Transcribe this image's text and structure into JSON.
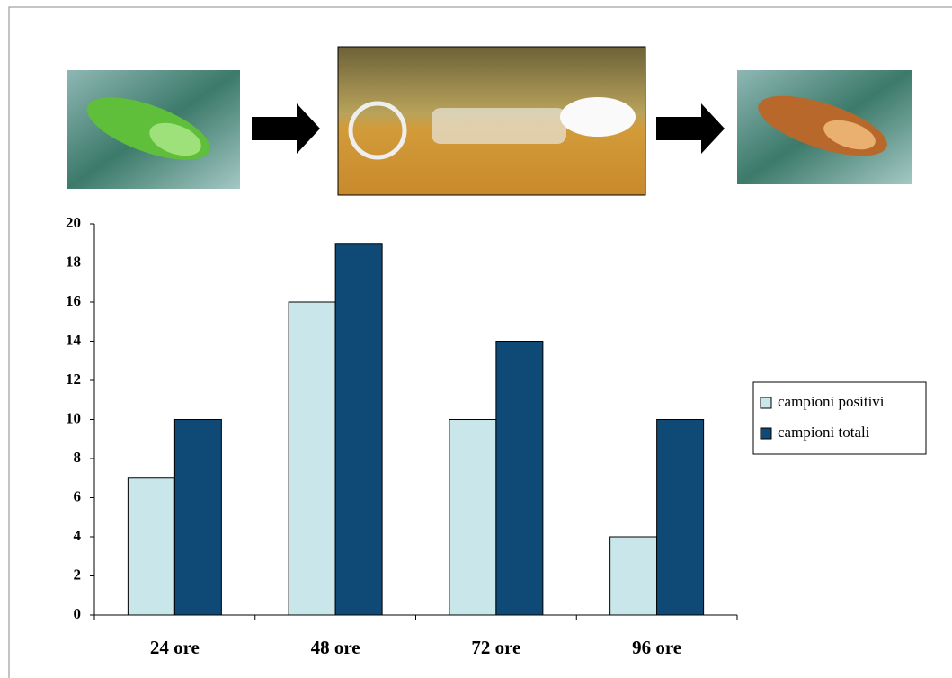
{
  "chart_data": {
    "type": "bar",
    "categories": [
      "24 ore",
      "48 ore",
      "72 ore",
      "96 ore"
    ],
    "series": [
      {
        "name": "campioni positivi",
        "color": "#c9e7ea",
        "values": [
          7,
          16,
          10,
          4
        ]
      },
      {
        "name": "campioni totali",
        "color": "#0f4a77",
        "values": [
          10,
          19,
          14,
          10
        ]
      }
    ],
    "ylim": [
      0,
      20
    ],
    "yticks": [
      0,
      2,
      4,
      6,
      8,
      10,
      12,
      14,
      16,
      18,
      20
    ],
    "grid": false,
    "legend": "right"
  }
}
